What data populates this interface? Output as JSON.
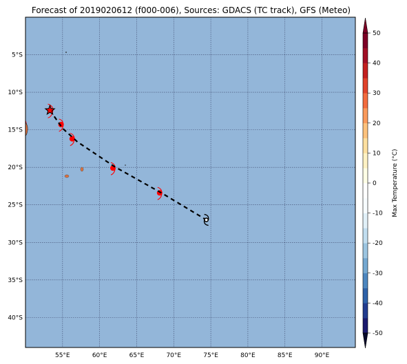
{
  "title": "Forecast of 2019020612 (f000-006), Sources: GDACS (TC track), GFS (Meteo)",
  "map": {
    "lon_range": [
      50,
      94.5
    ],
    "lat_range": [
      -44,
      0
    ],
    "ocean_color": "#93b6d9",
    "x_ticks": [
      {
        "value": 55,
        "label": "55°E"
      },
      {
        "value": 60,
        "label": "60°E"
      },
      {
        "value": 65,
        "label": "65°E"
      },
      {
        "value": 70,
        "label": "70°E"
      },
      {
        "value": 75,
        "label": "75°E"
      },
      {
        "value": 80,
        "label": "80°E"
      },
      {
        "value": 85,
        "label": "85°E"
      },
      {
        "value": 90,
        "label": "90°E"
      }
    ],
    "y_ticks": [
      {
        "value": -5,
        "label": "5°S"
      },
      {
        "value": -10,
        "label": "10°S"
      },
      {
        "value": -15,
        "label": "15°S"
      },
      {
        "value": -20,
        "label": "20°S"
      },
      {
        "value": -25,
        "label": "25°S"
      },
      {
        "value": -30,
        "label": "30°S"
      },
      {
        "value": -35,
        "label": "35°S"
      },
      {
        "value": -40,
        "label": "40°S"
      }
    ],
    "track": [
      {
        "lon": 53.3,
        "lat": -12.4,
        "marker": "star"
      },
      {
        "lon": 55.0,
        "lat": -14.8,
        "marker": "none"
      },
      {
        "lon": 57.0,
        "lat": -16.6,
        "marker": "none"
      },
      {
        "lon": 62.0,
        "lat": -19.9,
        "marker": "none"
      },
      {
        "lon": 68.5,
        "lat": -23.5,
        "marker": "none"
      },
      {
        "lon": 74.4,
        "lat": -27.0,
        "marker": "cyclone"
      }
    ],
    "hot_spots": [
      {
        "lon": 54.8,
        "lat": -14.3
      },
      {
        "lon": 56.3,
        "lat": -16.2
      },
      {
        "lon": 61.8,
        "lat": -20.1
      },
      {
        "lon": 68.1,
        "lat": -23.4
      }
    ]
  },
  "colorbar": {
    "label": "Max Temperature (°C)",
    "min": -50,
    "max": 50,
    "step": 5,
    "tick_values": [
      50,
      40,
      30,
      20,
      10,
      0,
      -10,
      -20,
      -30,
      -40,
      -50
    ],
    "colors": [
      "#1b1a6e",
      "#223c8f",
      "#2e62a9",
      "#4c86bf",
      "#74a8d1",
      "#9cc5e1",
      "#c1def0",
      "#e1f0f8",
      "#f7fcff",
      "#ffffff",
      "#ffffe6",
      "#fff2c4",
      "#fee0a0",
      "#fdc27d",
      "#fa9a5b",
      "#f26c3f",
      "#e0432b",
      "#c32020",
      "#a10f26",
      "#7d0026"
    ]
  }
}
